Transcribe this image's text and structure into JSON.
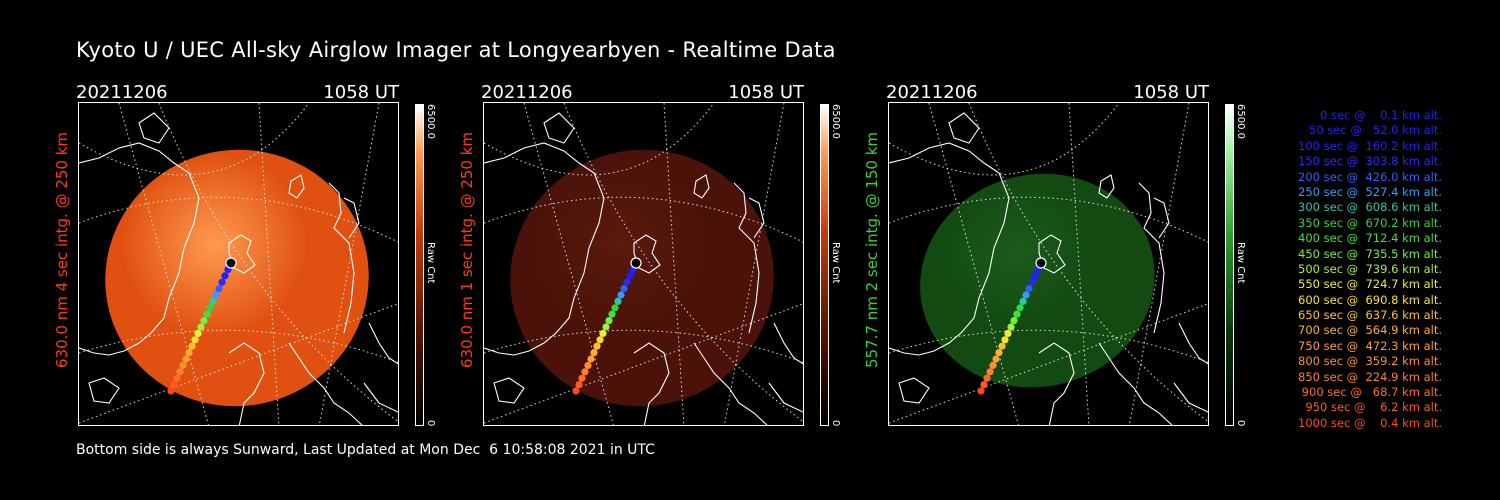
{
  "title": "Kyoto U / UEC All-sky Airglow Imager at Longyearbyen - Realtime Data",
  "panels": [
    {
      "date": "20211206",
      "time": "1058 UT",
      "ylabel": "630.0 nm  4 sec intg. @ 250 km",
      "label_color": "#ff3a1a",
      "cbar_max": "6500.0",
      "cbar_unit": "Raw Cnt",
      "cbar_min": "0",
      "glow_color": "#e05010",
      "glow_opacity": 1.0
    },
    {
      "date": "20211206",
      "time": "1058 UT",
      "ylabel": "630.0 nm  1 sec intg. @ 250 km",
      "label_color": "#ff3a1a",
      "cbar_max": "6500.0",
      "cbar_unit": "Raw Cnt",
      "cbar_min": "0",
      "glow_color": "#4a1208",
      "glow_opacity": 1.0
    },
    {
      "date": "20211206",
      "time": "1058 UT",
      "ylabel": "557.7 nm  2 sec intg. @ 150 km",
      "label_color": "#3ad23a",
      "cbar_max": "6500.0",
      "cbar_unit": "Raw Cnt",
      "cbar_min": "0",
      "glow_color": "#124a12",
      "glow_opacity": 1.0
    }
  ],
  "legend": [
    {
      "text": "   0 sec @    0.1 km alt.",
      "color": "#2020ff"
    },
    {
      "text": "  50 sec @   52.0 km alt.",
      "color": "#2020ff"
    },
    {
      "text": " 100 sec @  160.2 km alt.",
      "color": "#2020ff"
    },
    {
      "text": " 150 sec @  303.8 km alt.",
      "color": "#2a2aff"
    },
    {
      "text": " 200 sec @  426.0 km alt.",
      "color": "#3060ff"
    },
    {
      "text": " 250 sec @  527.4 km alt.",
      "color": "#3a9aff"
    },
    {
      "text": " 300 sec @  608.6 km alt.",
      "color": "#30c8a0"
    },
    {
      "text": " 350 sec @  670.2 km alt.",
      "color": "#30d830"
    },
    {
      "text": " 400 sec @  712.4 km alt.",
      "color": "#40e040"
    },
    {
      "text": " 450 sec @  735.5 km alt.",
      "color": "#70f040"
    },
    {
      "text": " 500 sec @  739.6 km alt.",
      "color": "#a0f040"
    },
    {
      "text": " 550 sec @  724.7 km alt.",
      "color": "#e8f040"
    },
    {
      "text": " 600 sec @  690.8 km alt.",
      "color": "#ffe030"
    },
    {
      "text": " 650 sec @  637.6 km alt.",
      "color": "#ffc030"
    },
    {
      "text": " 700 sec @  564.9 km alt.",
      "color": "#ffb030"
    },
    {
      "text": " 750 sec @  472.3 km alt.",
      "color": "#ffa030"
    },
    {
      "text": " 800 sec @  359.2 km alt.",
      "color": "#ff9030"
    },
    {
      "text": " 850 sec @  224.9 km alt.",
      "color": "#ff8030"
    },
    {
      "text": " 900 sec @   68.7 km alt.",
      "color": "#ff6a28"
    },
    {
      "text": " 950 sec @    6.2 km alt.",
      "color": "#ff5a20"
    },
    {
      "text": "1000 sec @    0.4 km alt.",
      "color": "#ff4a18"
    }
  ],
  "footer": "Bottom side is always Sunward, Last Updated at Mon Dec  6 10:58:08 2021 in UTC"
}
